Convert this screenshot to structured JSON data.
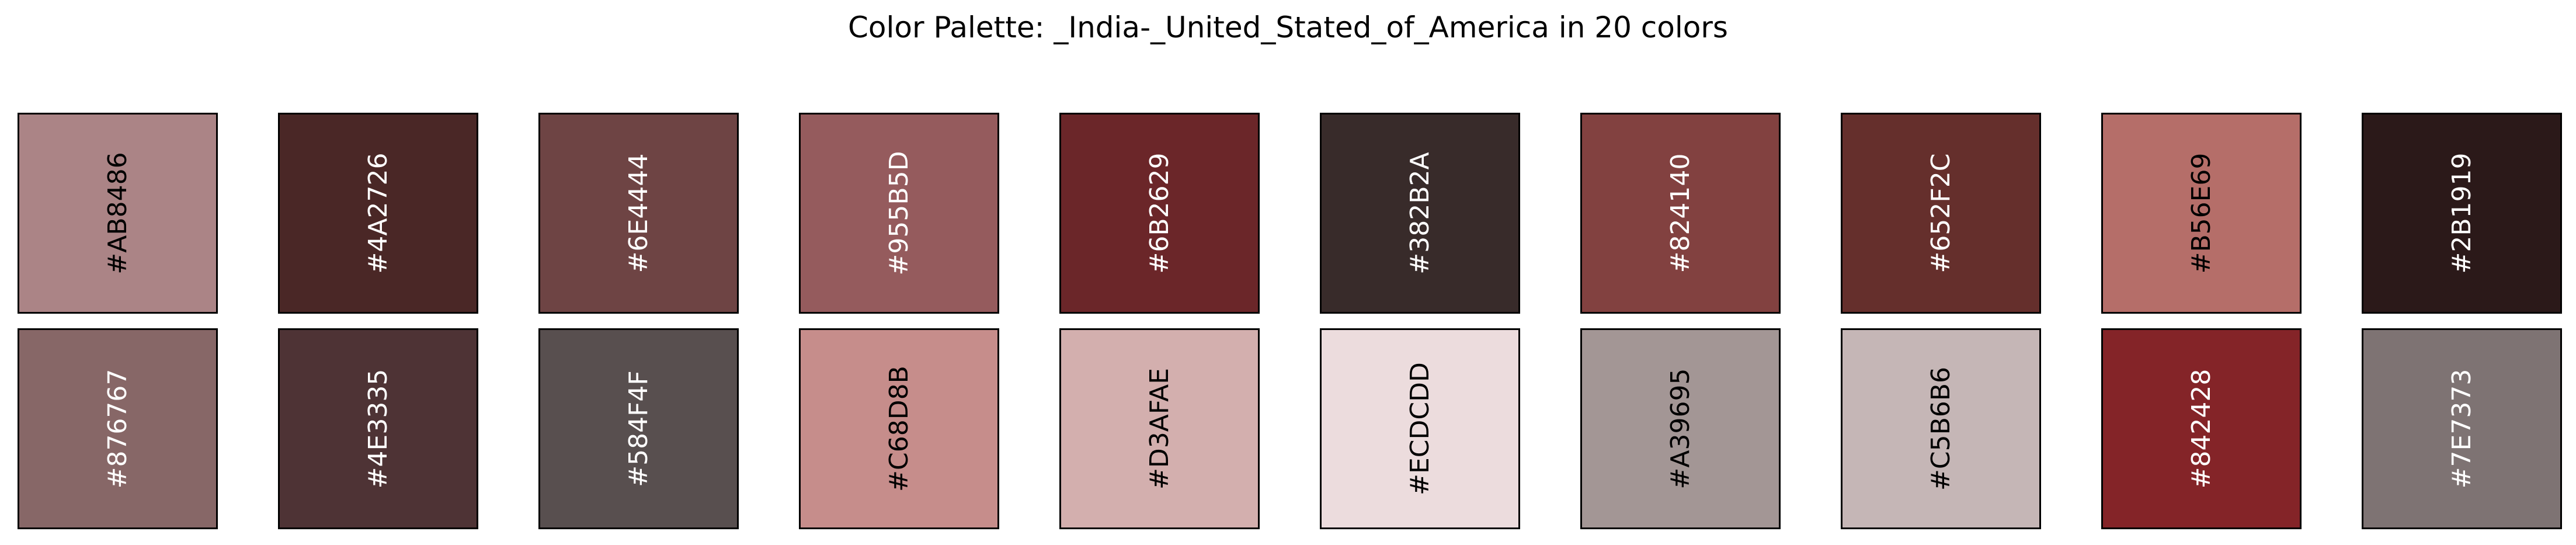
{
  "title": "Color Palette: _India-_United_Stated_of_America in 20 colors",
  "chart_data": {
    "type": "palette",
    "title": "Color Palette: _India-_United_Stated_of_America in 20 colors",
    "columns": 10,
    "rows": 2,
    "colors": [
      "#AB8486",
      "#4A2726",
      "#6E4444",
      "#955B5D",
      "#6B2629",
      "#382B2A",
      "#824140",
      "#652F2C",
      "#B56E69",
      "#2B1919",
      "#876767",
      "#4E3335",
      "#584F4F",
      "#C68D8B",
      "#D3AFAE",
      "#ECDCDD",
      "#A39695",
      "#C5B6B6",
      "#842428",
      "#7E7373"
    ],
    "label_colors": [
      "#000000",
      "#FFFFFF",
      "#FFFFFF",
      "#FFFFFF",
      "#FFFFFF",
      "#FFFFFF",
      "#FFFFFF",
      "#FFFFFF",
      "#000000",
      "#FFFFFF",
      "#FFFFFF",
      "#FFFFFF",
      "#FFFFFF",
      "#000000",
      "#000000",
      "#000000",
      "#000000",
      "#000000",
      "#FFFFFF",
      "#FFFFFF"
    ]
  }
}
